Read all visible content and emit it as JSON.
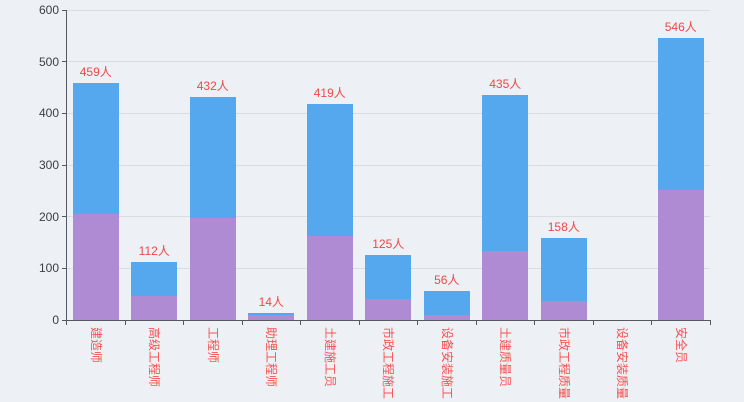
{
  "chart_data": {
    "type": "bar",
    "stacked": true,
    "title": "",
    "xlabel": "",
    "ylabel": "",
    "ylim": [
      0,
      600
    ],
    "yticks": [
      0,
      100,
      200,
      300,
      400,
      500,
      600
    ],
    "grid": true,
    "legend": "none",
    "categories": [
      "建造师",
      "高级工程师",
      "工程师",
      "助理工程师",
      "土建施工员",
      "市政工程施工",
      "设备安装施工",
      "土建质量员",
      "市政工程质量",
      "设备安装质量",
      "安全员"
    ],
    "series": [
      {
        "name": "lower-purple-segment",
        "color": "#ae8bd3",
        "values": [
          205,
          46,
          197,
          9,
          162,
          41,
          10,
          133,
          36,
          0,
          252
        ]
      },
      {
        "name": "upper-blue-segment",
        "color": "#55a7ee",
        "values": [
          254,
          66,
          235,
          5,
          257,
          84,
          46,
          302,
          122,
          0,
          294
        ]
      }
    ],
    "totals": [
      459,
      112,
      432,
      14,
      419,
      125,
      56,
      435,
      158,
      null,
      546
    ],
    "total_label_suffix": "人",
    "colors": {
      "background": "#edf0f5",
      "total_label": "#f04848",
      "category_label": "#f45252",
      "tick_label": "#3a3f45",
      "axis_line": "#55585c",
      "grid_line": "#d9dce1"
    }
  }
}
